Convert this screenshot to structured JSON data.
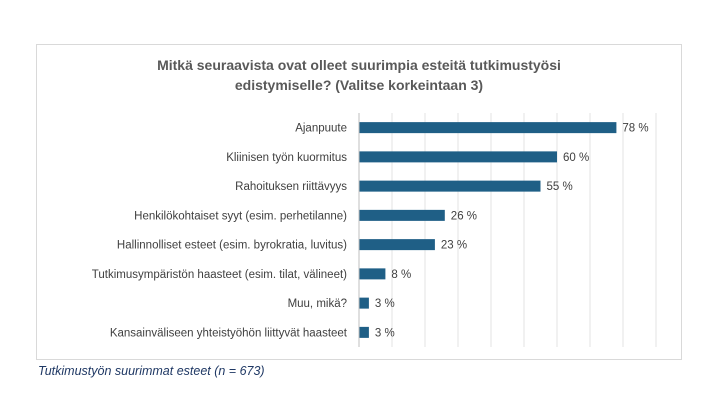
{
  "chart_data": {
    "type": "bar",
    "orientation": "horizontal",
    "title_line1": "Mitkä seuraavista ovat olleet suurimpia esteitä tutkimustyösi",
    "title_line2": "edistymiselle? (Valitse korkeintaan 3)",
    "categories": [
      "Ajanpuute",
      "Kliinisen työn kuormitus",
      "Rahoituksen riittävyys",
      "Henkilökohtaiset syyt (esim. perhetilanne)",
      "Hallinnolliset esteet (esim. byrokratia, luvitus)",
      "Tutkimusympäristön haasteet (esim. tilat, välineet)",
      "Muu, mikä?",
      "Kansainväliseen yhteistyöhön liittyvät haasteet"
    ],
    "values": [
      78,
      60,
      55,
      26,
      23,
      8,
      3,
      3
    ],
    "data_labels": [
      "78 %",
      "60 %",
      "55 %",
      "26 %",
      "23 %",
      "8 %",
      "3 %",
      "3 %"
    ],
    "xlim": [
      0,
      100
    ],
    "bar_color": "#1f5f86",
    "gridlines": true
  },
  "caption": "Tutkimustyön suurimmat esteet (n = 673)"
}
